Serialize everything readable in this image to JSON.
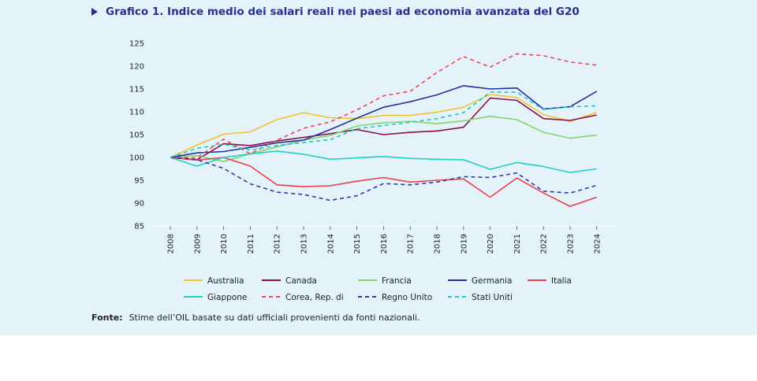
{
  "title": "Grafico 1. Indice medio dei salari reali nei paesi ad economia avanzata del G20",
  "source": {
    "label": "Fonte:",
    "text": "Stime dell’OIL basate su dati ufficiali provenienti da fonti nazionali."
  },
  "chart_data": {
    "type": "line",
    "title": "",
    "xlabel": "",
    "ylabel": "",
    "x": [
      "2008",
      "2009",
      "2010",
      "2011",
      "2012",
      "2013",
      "2014",
      "2015",
      "2016",
      "2017",
      "2018",
      "2019",
      "2020",
      "2021",
      "2022",
      "2023",
      "2024"
    ],
    "ylim": [
      85,
      125
    ],
    "yticks": [
      85,
      90,
      95,
      100,
      105,
      110,
      115,
      120,
      125
    ],
    "grid": false,
    "legend_position": "bottom",
    "series": [
      {
        "name": "Australia",
        "color": "#f2c12e",
        "dash": false,
        "values": [
          100,
          102.7,
          105.1,
          105.6,
          108.3,
          109.8,
          108.7,
          108.5,
          109.2,
          109.2,
          109.9,
          111.0,
          113.8,
          113.1,
          109.4,
          107.9,
          109.9
        ]
      },
      {
        "name": "Canada",
        "color": "#8c1047",
        "dash": false,
        "values": [
          100,
          99.5,
          103.0,
          102.6,
          103.6,
          104.4,
          105.2,
          106.1,
          105.0,
          105.5,
          105.8,
          106.6,
          113.0,
          112.5,
          108.5,
          108.1,
          109.3
        ]
      },
      {
        "name": "Francia",
        "color": "#86d46e",
        "dash": false,
        "values": [
          100,
          100.4,
          99.1,
          100.8,
          102.3,
          103.8,
          104.8,
          106.9,
          107.6,
          107.9,
          107.4,
          108.0,
          109.0,
          108.3,
          105.5,
          104.2,
          104.9
        ]
      },
      {
        "name": "Germania",
        "color": "#23309a",
        "dash": false,
        "values": [
          100,
          101.0,
          101.3,
          102.2,
          103.2,
          103.8,
          106.1,
          108.6,
          111.0,
          112.2,
          113.7,
          115.7,
          115.0,
          115.2,
          110.6,
          111.1,
          114.5
        ]
      },
      {
        "name": "Italia",
        "color": "#ec3f4a",
        "dash": false,
        "values": [
          100,
          99.4,
          100.0,
          98.1,
          94.0,
          93.6,
          93.8,
          94.8,
          95.6,
          94.6,
          95.0,
          95.3,
          91.3,
          95.5,
          92.2,
          89.3,
          91.3
        ]
      },
      {
        "name": "Giappone",
        "color": "#1fd0c6",
        "dash": false,
        "values": [
          100,
          98.1,
          100.0,
          100.8,
          101.4,
          100.7,
          99.6,
          99.9,
          100.2,
          99.8,
          99.6,
          99.5,
          97.4,
          98.9,
          98.0,
          96.7,
          97.5
        ]
      },
      {
        "name": "Corea, Rep. di",
        "color": "#ee4655",
        "dash": true,
        "values": [
          100,
          99.9,
          104.0,
          100.8,
          103.8,
          106.4,
          107.8,
          110.4,
          113.5,
          114.5,
          118.6,
          122.1,
          119.8,
          122.7,
          122.3,
          120.9,
          120.2
        ]
      },
      {
        "name": "Regno Unito",
        "color": "#2b3aa8",
        "dash": true,
        "values": [
          100,
          99.5,
          97.6,
          94.2,
          92.4,
          91.9,
          90.6,
          91.6,
          94.3,
          94.0,
          94.6,
          95.8,
          95.6,
          96.6,
          92.6,
          92.2,
          93.9
        ]
      },
      {
        "name": "Stati Uniti",
        "color": "#1dc8c0",
        "dash": true,
        "values": [
          100,
          102.0,
          102.9,
          101.6,
          102.6,
          103.3,
          103.9,
          106.3,
          107.0,
          107.7,
          108.5,
          109.8,
          114.3,
          114.3,
          110.5,
          111.1,
          111.3
        ]
      }
    ]
  }
}
